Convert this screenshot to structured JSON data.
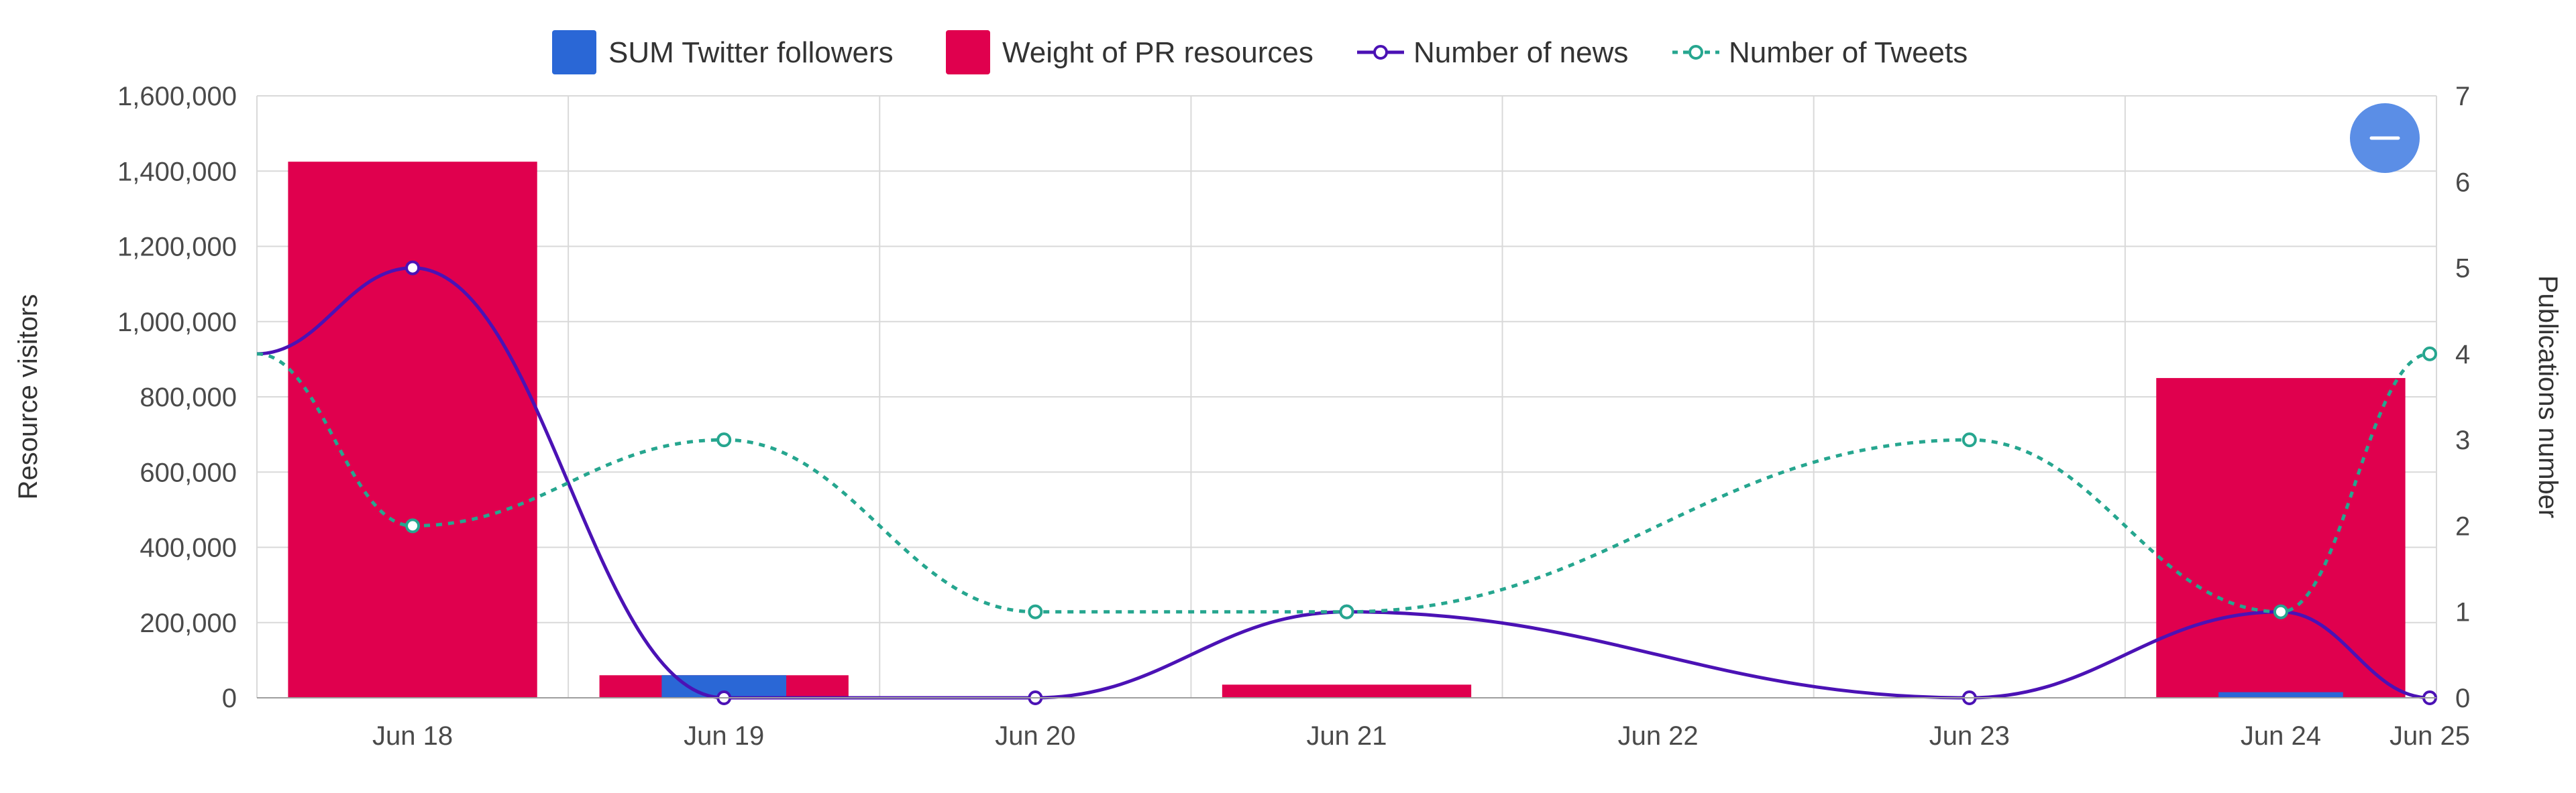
{
  "chart_data": {
    "type": "bar",
    "categories": [
      "Jun 18",
      "Jun 19",
      "Jun 20",
      "Jun 21",
      "Jun 22",
      "Jun 23",
      "Jun 24",
      "Jun 25"
    ],
    "series": [
      {
        "name": "SUM Twitter followers",
        "kind": "bar",
        "axis": "left",
        "color": "#2a67d6",
        "values": [
          0,
          60000,
          0,
          0,
          0,
          0,
          15000,
          0
        ]
      },
      {
        "name": "Weight of PR resources",
        "kind": "bar",
        "axis": "left",
        "color": "#e0004e",
        "values": [
          1425000,
          60000,
          0,
          35000,
          0,
          0,
          850000,
          0
        ]
      },
      {
        "name": "Number of news",
        "kind": "line",
        "axis": "right",
        "color": "#4b12b5",
        "values": [
          5,
          0,
          0,
          1,
          null,
          0,
          1,
          0
        ]
      },
      {
        "name": "Number of Tweets",
        "kind": "line",
        "axis": "right",
        "color": "#26a68f",
        "dashed": true,
        "values": [
          2,
          3,
          1,
          1,
          null,
          3,
          1,
          4
        ]
      }
    ],
    "line_start_value": {
      "Number of news": 4,
      "Number of Tweets": 4
    },
    "ylabel": "Resource visitors",
    "y2label": "Publications number",
    "ylim": [
      0,
      1600000
    ],
    "y2lim": [
      0,
      7
    ],
    "yticks": [
      "0",
      "200,000",
      "400,000",
      "600,000",
      "800,000",
      "1,000,000",
      "1,200,000",
      "1,400,000",
      "1,600,000"
    ],
    "y2ticks": [
      "0",
      "1",
      "2",
      "3",
      "4",
      "5",
      "6",
      "7"
    ],
    "grid": true,
    "legend_position": "top-center"
  },
  "controls": {
    "zoom_out_icon": "minus-icon",
    "zoom_out_color": "#5b8ee6"
  }
}
